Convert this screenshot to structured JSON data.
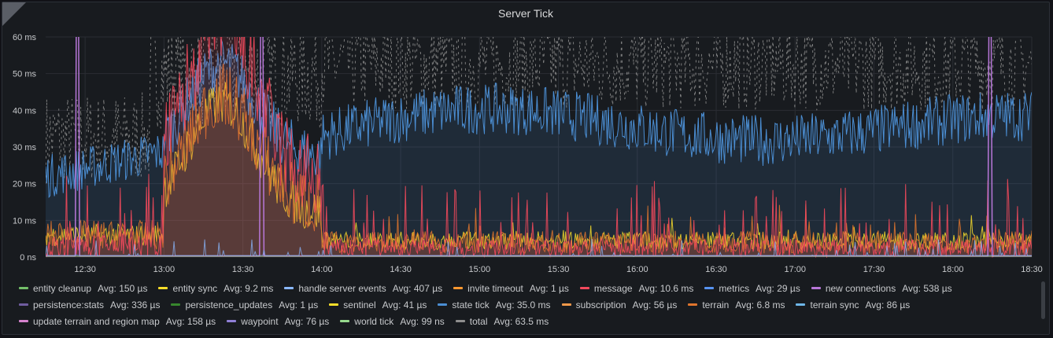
{
  "panel": {
    "title": "Server Tick"
  },
  "chart_data": {
    "type": "line",
    "title": "Server Tick",
    "xlabel": "",
    "ylabel": "",
    "ylim": [
      0,
      60
    ],
    "xlim": [
      "12:15",
      "18:30"
    ],
    "y_ticks": [
      "0 ns",
      "10 ms",
      "20 ms",
      "30 ms",
      "40 ms",
      "50 ms",
      "60 ms"
    ],
    "x_ticks": [
      "12:30",
      "13:00",
      "13:30",
      "14:00",
      "14:30",
      "15:00",
      "15:30",
      "16:00",
      "16:30",
      "17:00",
      "17:30",
      "18:00",
      "18:30"
    ],
    "grid": true,
    "legend_position": "bottom",
    "series": [
      {
        "name": "entity cleanup",
        "avg": "Avg: 150 µs",
        "color": "#73bf69"
      },
      {
        "name": "entity sync",
        "avg": "Avg: 9.2 ms",
        "color": "#fade2a"
      },
      {
        "name": "handle server events",
        "avg": "Avg: 407 µs",
        "color": "#8ab8ff"
      },
      {
        "name": "invite timeout",
        "avg": "Avg: 1 µs",
        "color": "#ff9830"
      },
      {
        "name": "message",
        "avg": "Avg: 10.6 ms",
        "color": "#f2495c"
      },
      {
        "name": "metrics",
        "avg": "Avg: 29 µs",
        "color": "#5794f2"
      },
      {
        "name": "new connections",
        "avg": "Avg: 538 µs",
        "color": "#b877d9"
      },
      {
        "name": "persistence:stats",
        "avg": "Avg: 336 µs",
        "color": "#705da0"
      },
      {
        "name": "persistence_updates",
        "avg": "Avg: 1 µs",
        "color": "#37872d"
      },
      {
        "name": "sentinel",
        "avg": "Avg: 41 µs",
        "color": "#fade2a"
      },
      {
        "name": "state tick",
        "avg": "Avg: 35.0 ms",
        "color": "#4b8ed3"
      },
      {
        "name": "subscription",
        "avg": "Avg: 56 µs",
        "color": "#f2994a"
      },
      {
        "name": "terrain",
        "avg": "Avg: 6.8 ms",
        "color": "#e0752d"
      },
      {
        "name": "terrain sync",
        "avg": "Avg: 86 µs",
        "color": "#6eb6e8"
      },
      {
        "name": "update terrain and region map",
        "avg": "Avg: 158 µs",
        "color": "#d683ce"
      },
      {
        "name": "waypoint",
        "avg": "Avg: 76 µs",
        "color": "#8f7fd6"
      },
      {
        "name": "world tick",
        "avg": "Avg: 99 ns",
        "color": "#96d98d"
      },
      {
        "name": "total",
        "avg": "Avg: 63.5 ms",
        "color": "#8e8e8e"
      }
    ]
  },
  "legend_rows": [
    [
      0,
      1,
      2,
      3,
      4,
      5,
      6
    ],
    [
      7,
      8,
      9,
      10,
      11,
      12,
      13
    ],
    [
      14,
      15,
      16,
      17
    ]
  ]
}
